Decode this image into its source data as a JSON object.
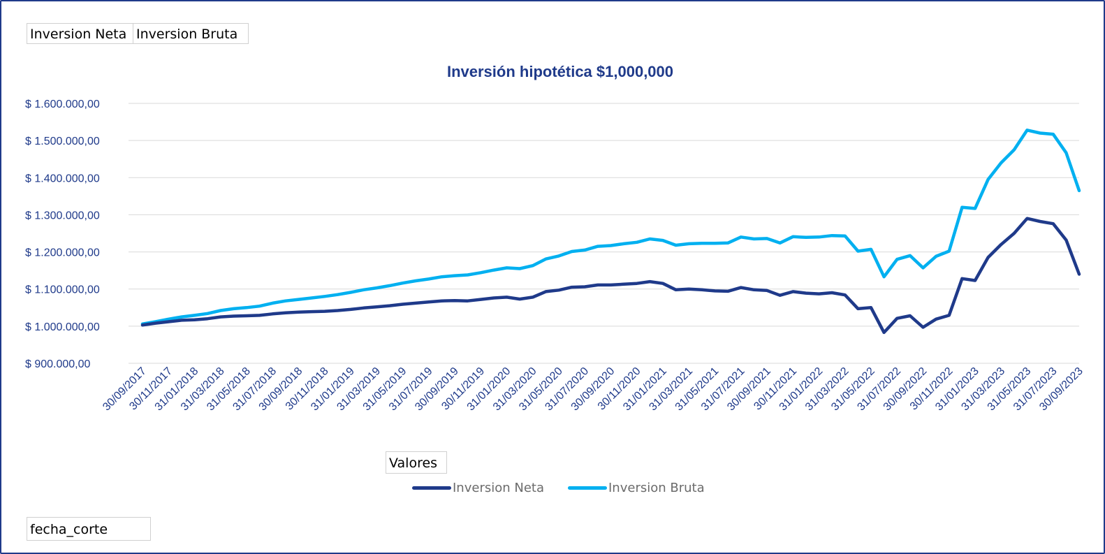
{
  "field_buttons": {
    "series_a": "Inversion Neta",
    "series_b": "Inversion Bruta",
    "values": "Valores",
    "filter": "fecha_corte"
  },
  "chart_data": {
    "type": "line",
    "title": "Inversión hipotética $1,000,000",
    "xlabel": "",
    "ylabel": "",
    "ylim": [
      900000,
      1600000
    ],
    "yticks": [
      900000,
      1000000,
      1100000,
      1200000,
      1300000,
      1400000,
      1500000,
      1600000
    ],
    "ytick_labels": [
      "$ 900.000,00",
      "$ 1.000.000,00",
      "$ 1.100.000,00",
      "$ 1.200.000,00",
      "$ 1.300.000,00",
      "$ 1.400.000,00",
      "$ 1.500.000,00",
      "$ 1.600.000,00"
    ],
    "grid": true,
    "legend_position": "bottom",
    "x": [
      "30/09/2017",
      "31/10/2017",
      "30/11/2017",
      "31/12/2017",
      "31/01/2018",
      "28/02/2018",
      "31/03/2018",
      "30/04/2018",
      "31/05/2018",
      "30/06/2018",
      "31/07/2018",
      "31/08/2018",
      "30/09/2018",
      "31/10/2018",
      "30/11/2018",
      "31/12/2018",
      "31/01/2019",
      "28/02/2019",
      "31/03/2019",
      "30/04/2019",
      "31/05/2019",
      "30/06/2019",
      "31/07/2019",
      "31/08/2019",
      "30/09/2019",
      "31/10/2019",
      "30/11/2019",
      "31/12/2019",
      "31/01/2020",
      "29/02/2020",
      "31/03/2020",
      "30/04/2020",
      "31/05/2020",
      "30/06/2020",
      "31/07/2020",
      "31/08/2020",
      "30/09/2020",
      "31/10/2020",
      "30/11/2020",
      "31/12/2020",
      "31/01/2021",
      "28/02/2021",
      "31/03/2021",
      "30/04/2021",
      "31/05/2021",
      "30/06/2021",
      "31/07/2021",
      "31/08/2021",
      "30/09/2021",
      "31/10/2021",
      "30/11/2021",
      "31/12/2021",
      "31/01/2022",
      "28/02/2022",
      "31/03/2022",
      "30/04/2022",
      "31/05/2022",
      "30/06/2022",
      "31/07/2022",
      "31/08/2022",
      "30/09/2022",
      "31/10/2022",
      "30/11/2022",
      "31/12/2022",
      "31/01/2023",
      "28/02/2023",
      "31/03/2023",
      "30/04/2023",
      "31/05/2023",
      "30/06/2023",
      "31/07/2023",
      "31/08/2023",
      "30/09/2023"
    ],
    "xtick_labels": [
      "30/09/2017",
      "30/11/2017",
      "31/01/2018",
      "31/03/2018",
      "31/05/2018",
      "31/07/2018",
      "30/09/2018",
      "30/11/2018",
      "31/01/2019",
      "31/03/2019",
      "31/05/2019",
      "31/07/2019",
      "30/09/2019",
      "30/11/2019",
      "31/01/2020",
      "31/03/2020",
      "31/05/2020",
      "31/07/2020",
      "30/09/2020",
      "30/11/2020",
      "31/01/2021",
      "31/03/2021",
      "31/05/2021",
      "31/07/2021",
      "30/09/2021",
      "30/11/2021",
      "31/01/2022",
      "31/03/2022",
      "31/05/2022",
      "31/07/2022",
      "30/09/2022",
      "30/11/2022",
      "31/01/2023",
      "31/03/2023",
      "31/05/2023",
      "31/07/2023",
      "30/09/2023"
    ],
    "series": [
      {
        "name": "Inversion Neta",
        "color": "#1F3A8A",
        "values": [
          1003000,
          1008000,
          1012000,
          1016000,
          1017000,
          1020000,
          1025000,
          1027000,
          1028000,
          1029000,
          1033000,
          1036000,
          1038000,
          1039000,
          1040000,
          1042000,
          1045000,
          1049000,
          1052000,
          1055000,
          1059000,
          1062000,
          1065000,
          1068000,
          1069000,
          1068000,
          1072000,
          1076000,
          1078000,
          1073000,
          1078000,
          1093000,
          1097000,
          1105000,
          1106000,
          1111000,
          1111000,
          1113000,
          1115000,
          1120000,
          1115000,
          1098000,
          1100000,
          1098000,
          1095000,
          1094000,
          1104000,
          1098000,
          1096000,
          1083000,
          1093000,
          1089000,
          1087000,
          1090000,
          1084000,
          1047000,
          1050000,
          983000,
          1021000,
          1028000,
          997000,
          1019000,
          1029000,
          1128000,
          1123000,
          1185000,
          1220000,
          1250000,
          1290000,
          1282000,
          1276000,
          1232000,
          1140000
        ]
      },
      {
        "name": "Inversion Bruta",
        "color": "#00B0F0",
        "values": [
          1006000,
          1012000,
          1019000,
          1025000,
          1029000,
          1034000,
          1042000,
          1047000,
          1050000,
          1054000,
          1062000,
          1068000,
          1072000,
          1076000,
          1080000,
          1085000,
          1091000,
          1098000,
          1103000,
          1109000,
          1116000,
          1122000,
          1127000,
          1133000,
          1136000,
          1138000,
          1144000,
          1151000,
          1157000,
          1155000,
          1163000,
          1181000,
          1189000,
          1201000,
          1205000,
          1215000,
          1217000,
          1222000,
          1226000,
          1235000,
          1231000,
          1218000,
          1222000,
          1223000,
          1223000,
          1224000,
          1240000,
          1235000,
          1236000,
          1224000,
          1241000,
          1239000,
          1240000,
          1244000,
          1243000,
          1202000,
          1207000,
          1133000,
          1180000,
          1190000,
          1157000,
          1188000,
          1202000,
          1320000,
          1317000,
          1395000,
          1440000,
          1475000,
          1528000,
          1520000,
          1517000,
          1467000,
          1365000
        ]
      }
    ]
  }
}
